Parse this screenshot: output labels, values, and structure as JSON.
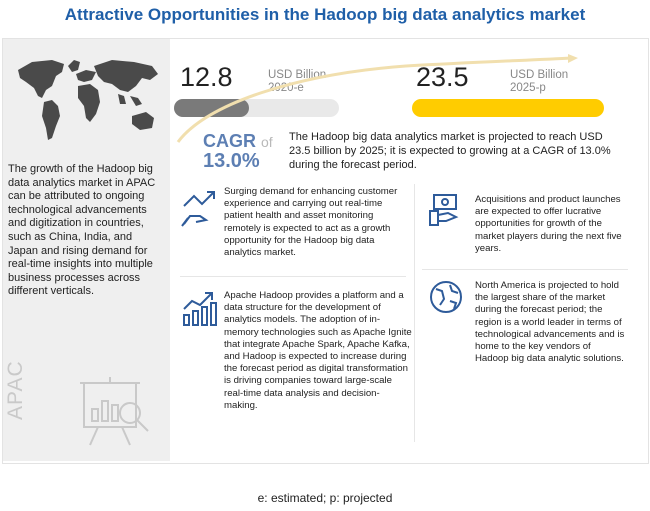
{
  "title": "Attractive Opportunities in the Hadoop big data analytics market",
  "left_panel": {
    "description": "The growth of the Hadoop big data analytics market in APAC can be attributed to ongoing technological advancements and digitization in countries, such as China, India, and Japan and rising demand for real-time insights into multiple business processes across different verticals.",
    "region_label": "APAC"
  },
  "market_size": {
    "start": {
      "value": "12.8",
      "unit": "USD Billion",
      "year": "2020-e"
    },
    "end": {
      "value": "23.5",
      "unit": "USD Billion",
      "year": "2025-p"
    },
    "colors": {
      "start_bar": "#7a7a7a",
      "end_bar": "#ffcc00"
    }
  },
  "cagr": {
    "label": "CAGR",
    "of": "of",
    "value": "13.0%",
    "description": "The Hadoop big data analytics market is projected to reach USD 23.5 billion by 2025; it is expected to growing at a CAGR of 13.0% during the forecast period."
  },
  "points": [
    {
      "icon": "hand-arrow-icon",
      "text": "Surging demand for enhancing customer experience and carrying out real-time patient health and asset monitoring remotely is expected to act as a growth opportunity for the Hadoop big data analytics market."
    },
    {
      "icon": "money-hand-icon",
      "text": "Acquisitions and product launches are expected to offer lucrative opportunities for growth of the market players during the next five years."
    },
    {
      "icon": "growth-chart-icon",
      "text": "Apache Hadoop provides a platform and a data structure for the development of analytics models. The adoption of in-memory technologies such as Apache Ignite that integrate Apache Spark, Apache Kafka, and Hadoop is expected to increase during the forecast period as digital transformation is driving companies toward large-scale real-time data analysis and decision-making."
    },
    {
      "icon": "globe-icon",
      "text": "North America is projected to hold the largest share of the market during the forecast period; the region is a world leader in terms of technological advancements and is home to the key vendors of Hadoop big data analytic solutions."
    }
  ],
  "footer": "e: estimated; p: projected",
  "accent_color": "#1f5fa8"
}
